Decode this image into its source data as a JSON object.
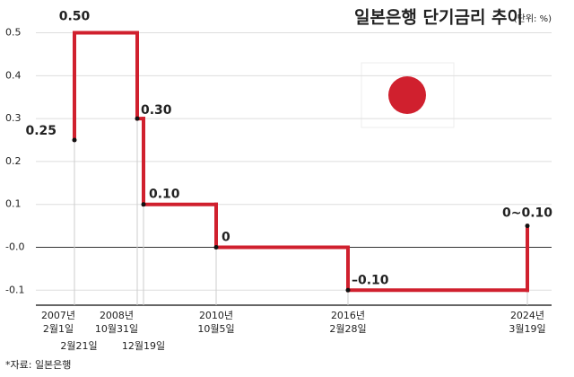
{
  "chart_data": {
    "type": "step",
    "title": "일본은행 단기금리 추이",
    "subtitle": "(단위: %)",
    "values": [
      0.25,
      0.5,
      0.3,
      0.1,
      0,
      -0.1,
      0.05
    ],
    "value_labels": [
      "0.25",
      "0.50",
      "0.30",
      "0.10",
      "0",
      "–0.10",
      "0~0.10"
    ],
    "x_labels": [
      [
        "2007년",
        "2월1일"
      ],
      [
        "2월21일"
      ],
      [
        "2008년",
        "10월31일"
      ],
      [
        "12월19일"
      ],
      [
        "2010년",
        "10월5일"
      ],
      [
        "2016년",
        "2월28일"
      ],
      [
        "2024년",
        "3월19일"
      ]
    ],
    "color": "#d0202e",
    "ylim": [
      -0.135,
      0.52
    ],
    "yticks": [
      0.5,
      0.4,
      0.3,
      0.2,
      0.1,
      {
        "value": 0,
        "label": "-0.0"
      },
      -0.1
    ],
    "grid": true,
    "source": "*자료: 일본은행"
  }
}
